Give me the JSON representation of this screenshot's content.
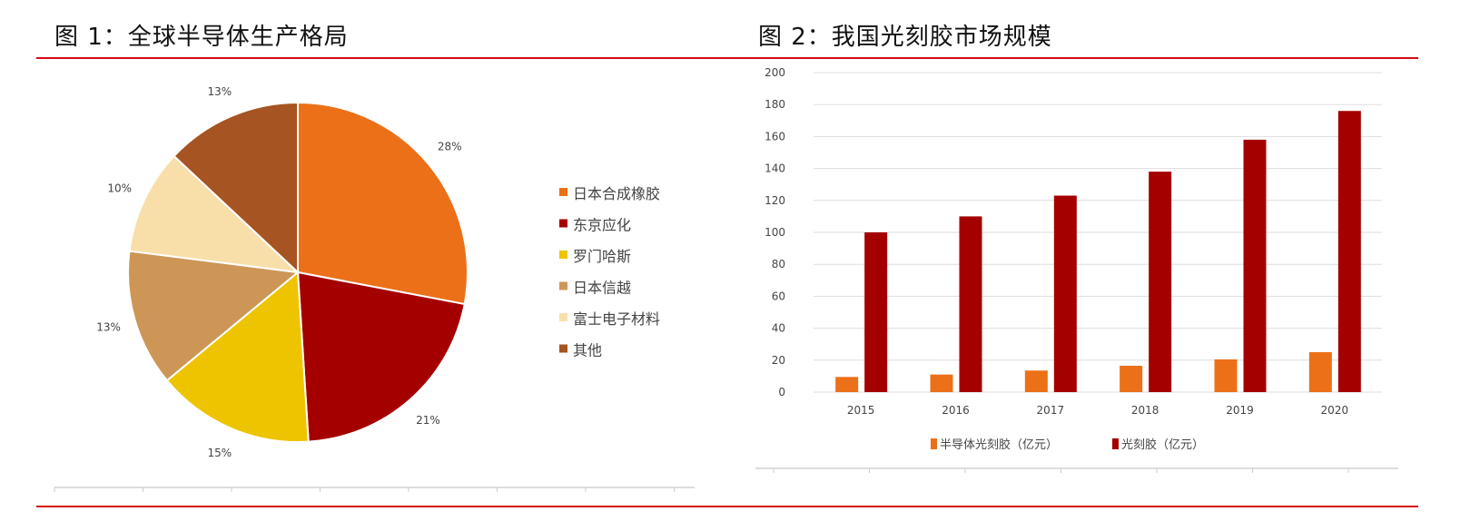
{
  "titles": {
    "fig1": "图 1：全球半导体生产格局",
    "fig2": "图 2：我国光刻胶市场规模"
  },
  "colors": {
    "accent_line": "#d40a14"
  },
  "chart_data": [
    {
      "type": "pie",
      "legend_position": "right",
      "slices": [
        {
          "name": "日本合成橡胶",
          "value": 28,
          "label": "28%",
          "color": "#ec7018"
        },
        {
          "name": "东京应化",
          "value": 21,
          "label": "21%",
          "color": "#a50000"
        },
        {
          "name": "罗门哈斯",
          "value": 15,
          "label": "15%",
          "color": "#eec400"
        },
        {
          "name": "日本信越",
          "value": 13,
          "label": "13%",
          "color": "#cd9657"
        },
        {
          "name": "富士电子材料",
          "value": 10,
          "label": "10%",
          "color": "#f8dfaa"
        },
        {
          "name": "其他",
          "value": 13,
          "label": "13%",
          "color": "#a65421"
        }
      ]
    },
    {
      "type": "bar",
      "categories": [
        "2015",
        "2016",
        "2017",
        "2018",
        "2019",
        "2020"
      ],
      "ylim": [
        0,
        200
      ],
      "yticks": [
        0,
        20,
        40,
        60,
        80,
        100,
        120,
        140,
        160,
        180,
        200
      ],
      "grid": true,
      "legend_position": "bottom",
      "series": [
        {
          "name": "半导体光刻胶（亿元）",
          "color": "#ec7018",
          "values": [
            9.5,
            11,
            13.5,
            16.5,
            20.5,
            25
          ]
        },
        {
          "name": "光刻胶（亿元）",
          "color": "#a50000",
          "values": [
            100,
            110,
            123,
            138,
            158,
            176
          ]
        }
      ]
    }
  ]
}
